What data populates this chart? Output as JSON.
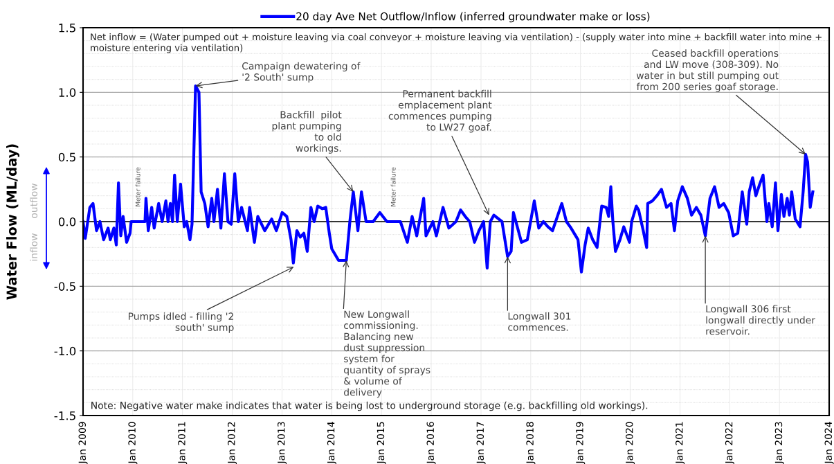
{
  "chart_data": {
    "type": "line",
    "ylabel": "Water Flow (ML/day)",
    "ylim": [
      -1.5,
      1.5
    ],
    "yticks": [
      {
        "value": -1.5,
        "label": "-1.5"
      },
      {
        "value": -1,
        "label": "-1.0"
      },
      {
        "value": -0.5,
        "label": "-0.5"
      },
      {
        "value": 0,
        "label": "0.0"
      },
      {
        "value": 0.5,
        "label": "0.5"
      },
      {
        "value": 1,
        "label": "1.0"
      },
      {
        "value": 1.5,
        "label": "1.5"
      }
    ],
    "xlim": [
      "2009-01-01",
      "2024-01-01"
    ],
    "xticks": [
      {
        "value": "2009-01-01",
        "label": "Jan 2009"
      },
      {
        "value": "2010-01-01",
        "label": "Jan 2010"
      },
      {
        "value": "2011-01-01",
        "label": "Jan 2011"
      },
      {
        "value": "2012-01-01",
        "label": "Jan 2012"
      },
      {
        "value": "2013-01-01",
        "label": "Jan 2013"
      },
      {
        "value": "2014-01-01",
        "label": "Jan 2014"
      },
      {
        "value": "2015-01-01",
        "label": "Jan 2015"
      },
      {
        "value": "2016-01-01",
        "label": "Jan 2016"
      },
      {
        "value": "2017-01-01",
        "label": "Jan 2017"
      },
      {
        "value": "2018-01-01",
        "label": "Jan 2018"
      },
      {
        "value": "2019-01-01",
        "label": "Jan 2019"
      },
      {
        "value": "2020-01-01",
        "label": "Jan 2020"
      },
      {
        "value": "2021-01-01",
        "label": "Jan 2021"
      },
      {
        "value": "2022-01-01",
        "label": "Jan 2022"
      },
      {
        "value": "2023-01-01",
        "label": "Jan 2023"
      },
      {
        "value": "2024-01-01",
        "label": "Jan 2024"
      }
    ],
    "grid": true,
    "legend": "top",
    "marker": "none",
    "line_style": "solid",
    "ref_lines": [
      {
        "axis": "y",
        "value": 0,
        "color": "#000000"
      }
    ],
    "x": [
      "2009-01-01",
      "2009-01-17",
      "2009-02-20",
      "2009-03-15",
      "2009-04-10",
      "2009-05-05",
      "2009-06-01",
      "2009-07-04",
      "2009-07-20",
      "2009-08-15",
      "2009-09-02",
      "2009-09-18",
      "2009-10-05",
      "2009-10-22",
      "2009-11-17",
      "2009-12-12",
      "2009-12-20",
      "2010-04-01",
      "2010-04-08",
      "2010-04-25",
      "2010-05-20",
      "2010-06-07",
      "2010-07-10",
      "2010-08-05",
      "2010-09-01",
      "2010-09-17",
      "2010-10-04",
      "2010-10-20",
      "2010-11-04",
      "2010-11-24",
      "2010-12-18",
      "2011-01-14",
      "2011-02-01",
      "2011-02-25",
      "2011-03-12",
      "2011-04-07",
      "2011-05-02",
      "2011-05-18",
      "2011-06-14",
      "2011-07-08",
      "2011-08-04",
      "2011-08-20",
      "2011-09-15",
      "2011-10-10",
      "2011-11-05",
      "2011-12-01",
      "2011-12-25",
      "2012-01-20",
      "2012-02-15",
      "2012-03-10",
      "2012-04-22",
      "2012-05-08",
      "2012-06-12",
      "2012-07-07",
      "2012-08-27",
      "2012-10-17",
      "2012-11-20",
      "2013-01-02",
      "2013-02-05",
      "2013-03-08",
      "2013-03-25",
      "2013-04-20",
      "2013-05-15",
      "2013-06-10",
      "2013-07-05",
      "2013-08-01",
      "2013-08-25",
      "2013-09-20",
      "2013-10-24",
      "2013-11-18",
      "2013-12-14",
      "2014-01-01",
      "2014-02-20",
      "2014-04-18",
      "2014-05-14",
      "2014-06-08",
      "2014-07-12",
      "2014-08-07",
      "2014-09-10",
      "2014-11-01",
      "2014-12-20",
      "2015-02-10",
      "2015-05-20",
      "2015-07-10",
      "2015-08-14",
      "2015-09-17",
      "2015-11-07",
      "2015-11-24",
      "2016-01-14",
      "2016-02-08",
      "2016-03-28",
      "2016-05-10",
      "2016-07-01",
      "2016-08-04",
      "2016-09-07",
      "2016-10-10",
      "2016-11-14",
      "2016-12-17",
      "2017-01-20",
      "2017-02-15",
      "2017-03-10",
      "2017-04-05",
      "2017-06-04",
      "2017-07-15",
      "2017-08-10",
      "2017-08-27",
      "2017-09-14",
      "2017-10-25",
      "2017-12-07",
      "2018-01-27",
      "2018-03-01",
      "2018-04-04",
      "2018-05-07",
      "2018-06-10",
      "2018-08-17",
      "2018-09-20",
      "2018-10-24",
      "2018-12-14",
      "2019-01-08",
      "2019-02-04",
      "2019-02-27",
      "2019-04-01",
      "2019-05-03",
      "2019-06-06",
      "2019-07-09",
      "2019-07-27",
      "2019-08-12",
      "2019-08-27",
      "2019-09-15",
      "2019-10-18",
      "2019-11-15",
      "2019-12-27",
      "2020-01-12",
      "2020-02-15",
      "2020-03-03",
      "2020-04-06",
      "2020-05-01",
      "2020-05-09",
      "2020-06-12",
      "2020-07-15",
      "2020-08-18",
      "2020-09-24",
      "2020-10-27",
      "2020-11-21",
      "2020-12-15",
      "2021-01-18",
      "2021-02-24",
      "2021-03-27",
      "2021-05-01",
      "2021-06-03",
      "2021-07-06",
      "2021-08-09",
      "2021-09-12",
      "2021-10-15",
      "2021-11-18",
      "2021-12-24",
      "2022-01-27",
      "2022-03-01",
      "2022-04-03",
      "2022-05-06",
      "2022-05-24",
      "2022-06-18",
      "2022-07-12",
      "2022-08-09",
      "2022-09-03",
      "2022-10-01",
      "2022-10-15",
      "2022-11-09",
      "2022-12-03",
      "2022-12-21",
      "2023-01-15",
      "2023-02-03",
      "2023-02-27",
      "2023-03-15",
      "2023-04-01",
      "2023-04-27",
      "2023-06-01",
      "2023-06-24",
      "2023-07-12",
      "2023-07-27",
      "2023-08-15",
      "2023-09-03"
    ],
    "series": [
      {
        "name": "20 day Ave Net Outflow/Inflow (inferred groundwater make or loss)",
        "color": "#0000ff",
        "values": [
          0,
          -0.13,
          0.11,
          0.14,
          -0.07,
          0,
          -0.14,
          -0.05,
          -0.14,
          -0.05,
          -0.18,
          0.3,
          -0.11,
          0.04,
          -0.16,
          -0.09,
          0,
          0,
          0.18,
          -0.07,
          0.11,
          -0.05,
          0.14,
          0,
          0.16,
          0,
          0.14,
          0,
          0.36,
          0,
          0.29,
          -0.04,
          0,
          -0.14,
          -0.02,
          1.05,
          1.0,
          0.23,
          0.14,
          -0.04,
          0.18,
          0,
          0.25,
          -0.05,
          0.37,
          0,
          -0.02,
          0.37,
          0,
          0.11,
          -0.07,
          0.11,
          -0.16,
          0.04,
          -0.07,
          0.02,
          -0.07,
          0.07,
          0.04,
          -0.14,
          -0.32,
          -0.07,
          -0.12,
          -0.09,
          -0.23,
          0.11,
          0,
          0.12,
          0.1,
          0.11,
          -0.09,
          -0.21,
          -0.3,
          -0.3,
          0,
          0.23,
          -0.07,
          0.23,
          0,
          0,
          0.07,
          0,
          0,
          -0.16,
          0.04,
          -0.11,
          0.18,
          -0.11,
          0,
          -0.11,
          0.11,
          -0.05,
          0,
          0.09,
          0.04,
          0,
          -0.16,
          -0.07,
          0,
          -0.36,
          0,
          0.05,
          0,
          -0.27,
          -0.23,
          0.07,
          0,
          -0.16,
          -0.14,
          0.16,
          -0.05,
          0,
          -0.04,
          -0.07,
          0.14,
          0,
          -0.05,
          -0.14,
          -0.39,
          -0.18,
          -0.05,
          -0.14,
          -0.2,
          0.12,
          0.11,
          0.04,
          0.27,
          0,
          -0.23,
          -0.14,
          -0.04,
          -0.16,
          0,
          0.12,
          0.09,
          -0.07,
          -0.2,
          0.14,
          0.16,
          0.2,
          0.25,
          0.11,
          0.14,
          -0.07,
          0.16,
          0.27,
          0.18,
          0.05,
          0.11,
          0.05,
          -0.11,
          0.18,
          0.27,
          0.11,
          0.14,
          0.07,
          -0.11,
          -0.09,
          0.23,
          -0.02,
          0.23,
          0.34,
          0.2,
          0.29,
          0.36,
          0,
          0.14,
          -0.04,
          0.3,
          -0.07,
          0.21,
          0.04,
          0.18,
          0.05,
          0.23,
          0.02,
          -0.04,
          0.23,
          0.52,
          0.46,
          0.11,
          0.23
        ]
      }
    ],
    "annotations": [
      "Net inflow = (Water pumped out + moisture leaving via coal conveyor + moisture leaving via ventilation) - (supply water into mine + backfill water into mine + moisture entering via ventilation)",
      "Note: Negative water make indicates that water is being lost to underground storage (e.g. backfilling old workings).",
      "outflow",
      "inflow",
      {
        "text": "Campaign dewatering of\n'2 South' sump",
        "x": "2011-04-07",
        "y": 1.05
      },
      {
        "text": "Backfill  pilot\nplant pumping\nto old\nworkings.",
        "x": "2014-06-08",
        "y": 0.23
      },
      {
        "text": "Permanent backfill\nemplacement plant\ncommences pumping\nto LW27 goaf.",
        "x": "2017-03-01",
        "y": 0.05
      },
      {
        "text": "Ceased backfill operations\nand LW move (308-309). No\nwater in but still pumping out\nfrom 200 series goaf storage.",
        "x": "2023-07-12",
        "y": 0.52
      },
      {
        "text": "Pumps idled - filling '2\nsouth' sump",
        "x": "2013-03-28",
        "y": -0.35
      },
      {
        "text": "New Longwall\ncommissioning.\nBalancing new\ndust suppression\nsystem for\nquantity of sprays\n& volume of\ndelivery",
        "x": "2014-04-18",
        "y": -0.3
      },
      {
        "text": "Longwall 301\ncommences.",
        "x": "2017-07-15",
        "y": -0.27
      },
      {
        "text": "Longwall 306 first\nlongwall directly under\nreservoir.",
        "x": "2021-07-06",
        "y": -0.11
      },
      "Meter failure",
      "Meter failure"
    ]
  }
}
